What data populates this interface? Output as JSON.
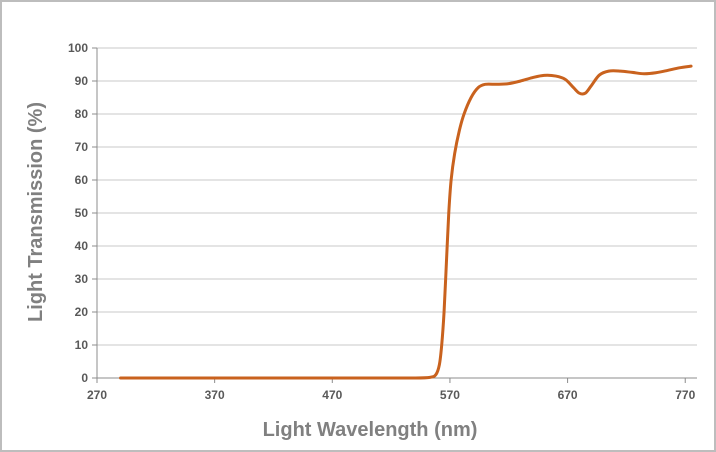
{
  "chart_data": {
    "type": "line",
    "title": "",
    "xlabel": "Light Wavelength (nm)",
    "ylabel": "Light Transmission (%)",
    "xlim": [
      270,
      780
    ],
    "ylim": [
      0,
      100
    ],
    "x_ticks": [
      270,
      370,
      470,
      570,
      670,
      770
    ],
    "y_ticks": [
      0,
      10,
      20,
      30,
      40,
      50,
      60,
      70,
      80,
      90,
      100
    ],
    "grid": "horizontal",
    "legend": "none",
    "series": [
      {
        "color": "#c9621e",
        "points": [
          [
            290,
            0
          ],
          [
            350,
            0
          ],
          [
            400,
            0
          ],
          [
            450,
            0
          ],
          [
            500,
            0
          ],
          [
            540,
            0
          ],
          [
            553,
            0.2
          ],
          [
            558,
            1
          ],
          [
            561,
            4
          ],
          [
            563,
            10
          ],
          [
            565,
            20
          ],
          [
            567,
            35
          ],
          [
            569,
            50
          ],
          [
            571,
            60
          ],
          [
            574,
            68
          ],
          [
            578,
            75
          ],
          [
            582,
            80
          ],
          [
            588,
            85
          ],
          [
            594,
            88
          ],
          [
            600,
            89
          ],
          [
            610,
            89
          ],
          [
            620,
            89.2
          ],
          [
            630,
            90
          ],
          [
            640,
            91
          ],
          [
            650,
            91.7
          ],
          [
            660,
            91.5
          ],
          [
            668,
            90.5
          ],
          [
            675,
            88
          ],
          [
            680,
            86.3
          ],
          [
            685,
            86.3
          ],
          [
            690,
            88.5
          ],
          [
            697,
            91.8
          ],
          [
            705,
            93
          ],
          [
            715,
            93
          ],
          [
            725,
            92.6
          ],
          [
            735,
            92.2
          ],
          [
            745,
            92.5
          ],
          [
            755,
            93.2
          ],
          [
            765,
            94
          ],
          [
            775,
            94.5
          ]
        ]
      }
    ]
  }
}
